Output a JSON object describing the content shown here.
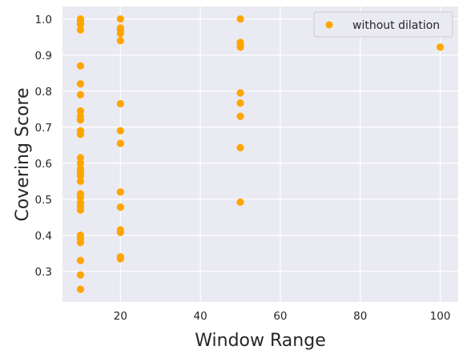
{
  "chart_data": {
    "type": "scatter",
    "title": "",
    "xlabel": "Window Range",
    "ylabel": "Covering Score",
    "xlim": [
      5.5,
      104.5
    ],
    "ylim": [
      0.215,
      1.035
    ],
    "xticks": [
      20,
      40,
      60,
      80,
      100
    ],
    "xtick_labels": [
      "20",
      "40",
      "60",
      "80",
      "100"
    ],
    "yticks": [
      0.3,
      0.4,
      0.5,
      0.6,
      0.7,
      0.8,
      0.9,
      1.0
    ],
    "ytick_labels": [
      "0.3",
      "0.4",
      "0.5",
      "0.6",
      "0.7",
      "0.8",
      "0.9",
      "1.0"
    ],
    "grid": true,
    "legend_position": "top-right",
    "series": [
      {
        "name": "without dilation",
        "color": "#FFA500",
        "points": [
          {
            "x": 10,
            "y": 1.0
          },
          {
            "x": 10,
            "y": 0.995
          },
          {
            "x": 10,
            "y": 0.99
          },
          {
            "x": 10,
            "y": 0.985
          },
          {
            "x": 10,
            "y": 0.97
          },
          {
            "x": 10,
            "y": 0.87
          },
          {
            "x": 10,
            "y": 0.82
          },
          {
            "x": 10,
            "y": 0.79
          },
          {
            "x": 10,
            "y": 0.745
          },
          {
            "x": 10,
            "y": 0.73
          },
          {
            "x": 10,
            "y": 0.72
          },
          {
            "x": 10,
            "y": 0.69
          },
          {
            "x": 10,
            "y": 0.68
          },
          {
            "x": 10,
            "y": 0.615
          },
          {
            "x": 10,
            "y": 0.6
          },
          {
            "x": 10,
            "y": 0.585
          },
          {
            "x": 10,
            "y": 0.575
          },
          {
            "x": 10,
            "y": 0.565
          },
          {
            "x": 10,
            "y": 0.55
          },
          {
            "x": 10,
            "y": 0.515
          },
          {
            "x": 10,
            "y": 0.505
          },
          {
            "x": 10,
            "y": 0.49
          },
          {
            "x": 10,
            "y": 0.48
          },
          {
            "x": 10,
            "y": 0.47
          },
          {
            "x": 10,
            "y": 0.4
          },
          {
            "x": 10,
            "y": 0.39
          },
          {
            "x": 10,
            "y": 0.38
          },
          {
            "x": 10,
            "y": 0.33
          },
          {
            "x": 10,
            "y": 0.29
          },
          {
            "x": 10,
            "y": 0.25
          },
          {
            "x": 20,
            "y": 1.0
          },
          {
            "x": 20,
            "y": 0.975
          },
          {
            "x": 20,
            "y": 0.97
          },
          {
            "x": 20,
            "y": 0.96
          },
          {
            "x": 20,
            "y": 0.94
          },
          {
            "x": 20,
            "y": 0.765
          },
          {
            "x": 20,
            "y": 0.69
          },
          {
            "x": 20,
            "y": 0.655
          },
          {
            "x": 20,
            "y": 0.52
          },
          {
            "x": 20,
            "y": 0.478
          },
          {
            "x": 20,
            "y": 0.415
          },
          {
            "x": 20,
            "y": 0.408
          },
          {
            "x": 20,
            "y": 0.34
          },
          {
            "x": 20,
            "y": 0.335
          },
          {
            "x": 50,
            "y": 1.0
          },
          {
            "x": 50,
            "y": 0.935
          },
          {
            "x": 50,
            "y": 0.93
          },
          {
            "x": 50,
            "y": 0.922
          },
          {
            "x": 50,
            "y": 0.795
          },
          {
            "x": 50,
            "y": 0.767
          },
          {
            "x": 50,
            "y": 0.73
          },
          {
            "x": 50,
            "y": 0.643
          },
          {
            "x": 50,
            "y": 0.492
          },
          {
            "x": 100,
            "y": 0.922
          }
        ]
      }
    ]
  }
}
